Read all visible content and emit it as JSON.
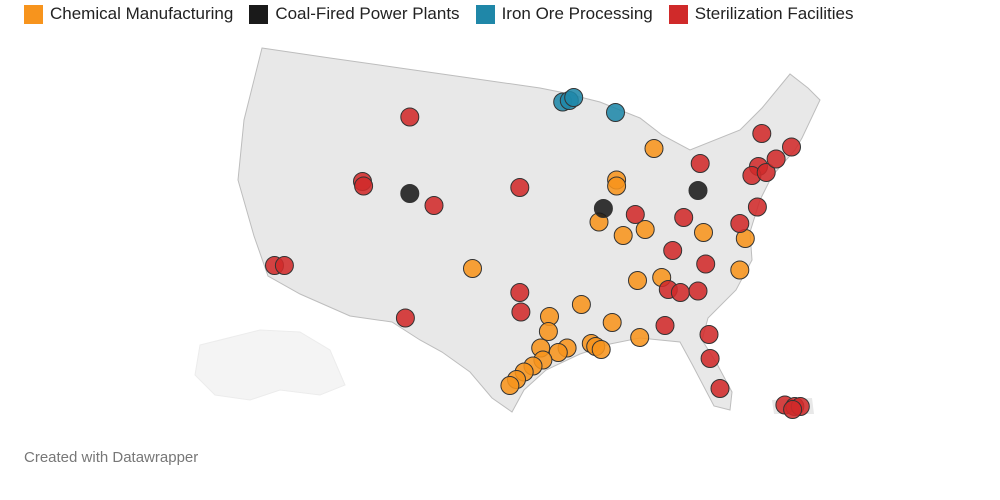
{
  "chart_data": {
    "type": "scatter",
    "xlim": [
      -118,
      -68
    ],
    "ylim": [
      22,
      50
    ],
    "series": [
      {
        "name": "Chemical Manufacturing",
        "color": "#f7941d",
        "x": [
          -84.0,
          -87.4,
          -87.4,
          -89.0,
          -86.8,
          -84.8,
          -79.5,
          -75.7,
          -76.2,
          -83.3,
          -85.5,
          -100.5,
          -90.6,
          -93.5,
          -93.6,
          -87.8,
          -85.3,
          -89.7,
          -89.3,
          -88.8,
          -91.9,
          -92.7,
          -94.3,
          -94.1,
          -95.0,
          -95.8,
          -96.5,
          -97.1
        ],
        "y": [
          44.1,
          42.0,
          41.6,
          39.2,
          38.3,
          38.7,
          38.5,
          38.1,
          36.0,
          35.5,
          35.3,
          36.1,
          33.7,
          32.9,
          31.9,
          32.5,
          31.5,
          31.1,
          30.9,
          30.7,
          30.8,
          30.5,
          30.8,
          30.0,
          29.6,
          29.2,
          28.7,
          28.3
        ]
      },
      {
        "name": "Coal-Fired Power Plants",
        "color": "#1a1a1a",
        "x": [
          -106.2,
          -88.6,
          -80.0
        ],
        "y": [
          41.1,
          40.1,
          41.3
        ]
      },
      {
        "name": "Iron Ore Processing",
        "color": "#1f87a8",
        "x": [
          -92.3,
          -91.7,
          -91.3,
          -87.5
        ],
        "y": [
          47.2,
          47.3,
          47.5,
          46.5
        ]
      },
      {
        "name": "Sterilization Facilities",
        "color": "#d02a2a",
        "x": [
          -106.2,
          -110.5,
          -110.4,
          -104.0,
          -96.2,
          -118.5,
          -117.6,
          -106.6,
          -96.2,
          -96.1,
          -85.7,
          -81.3,
          -79.8,
          -76.2,
          -74.6,
          -74.2,
          -74.5,
          -75.1,
          -73.8,
          -72.9,
          -71.5,
          -82.3,
          -79.3,
          -82.7,
          -81.6,
          -80.0,
          -83.0,
          -79.0,
          -78.9,
          -78.0,
          -72.1,
          -71.2,
          -70.7,
          -71.4
        ],
        "y": [
          46.2,
          41.9,
          41.6,
          40.3,
          41.5,
          36.3,
          36.3,
          32.8,
          34.5,
          33.2,
          39.7,
          39.5,
          43.1,
          39.1,
          40.2,
          45.1,
          42.9,
          42.3,
          42.5,
          43.4,
          44.2,
          37.3,
          36.4,
          34.7,
          34.5,
          34.6,
          32.3,
          31.7,
          30.1,
          28.1,
          27.0,
          26.9,
          26.9,
          26.7
        ]
      }
    ],
    "credit": "Created with Datawrapper"
  }
}
